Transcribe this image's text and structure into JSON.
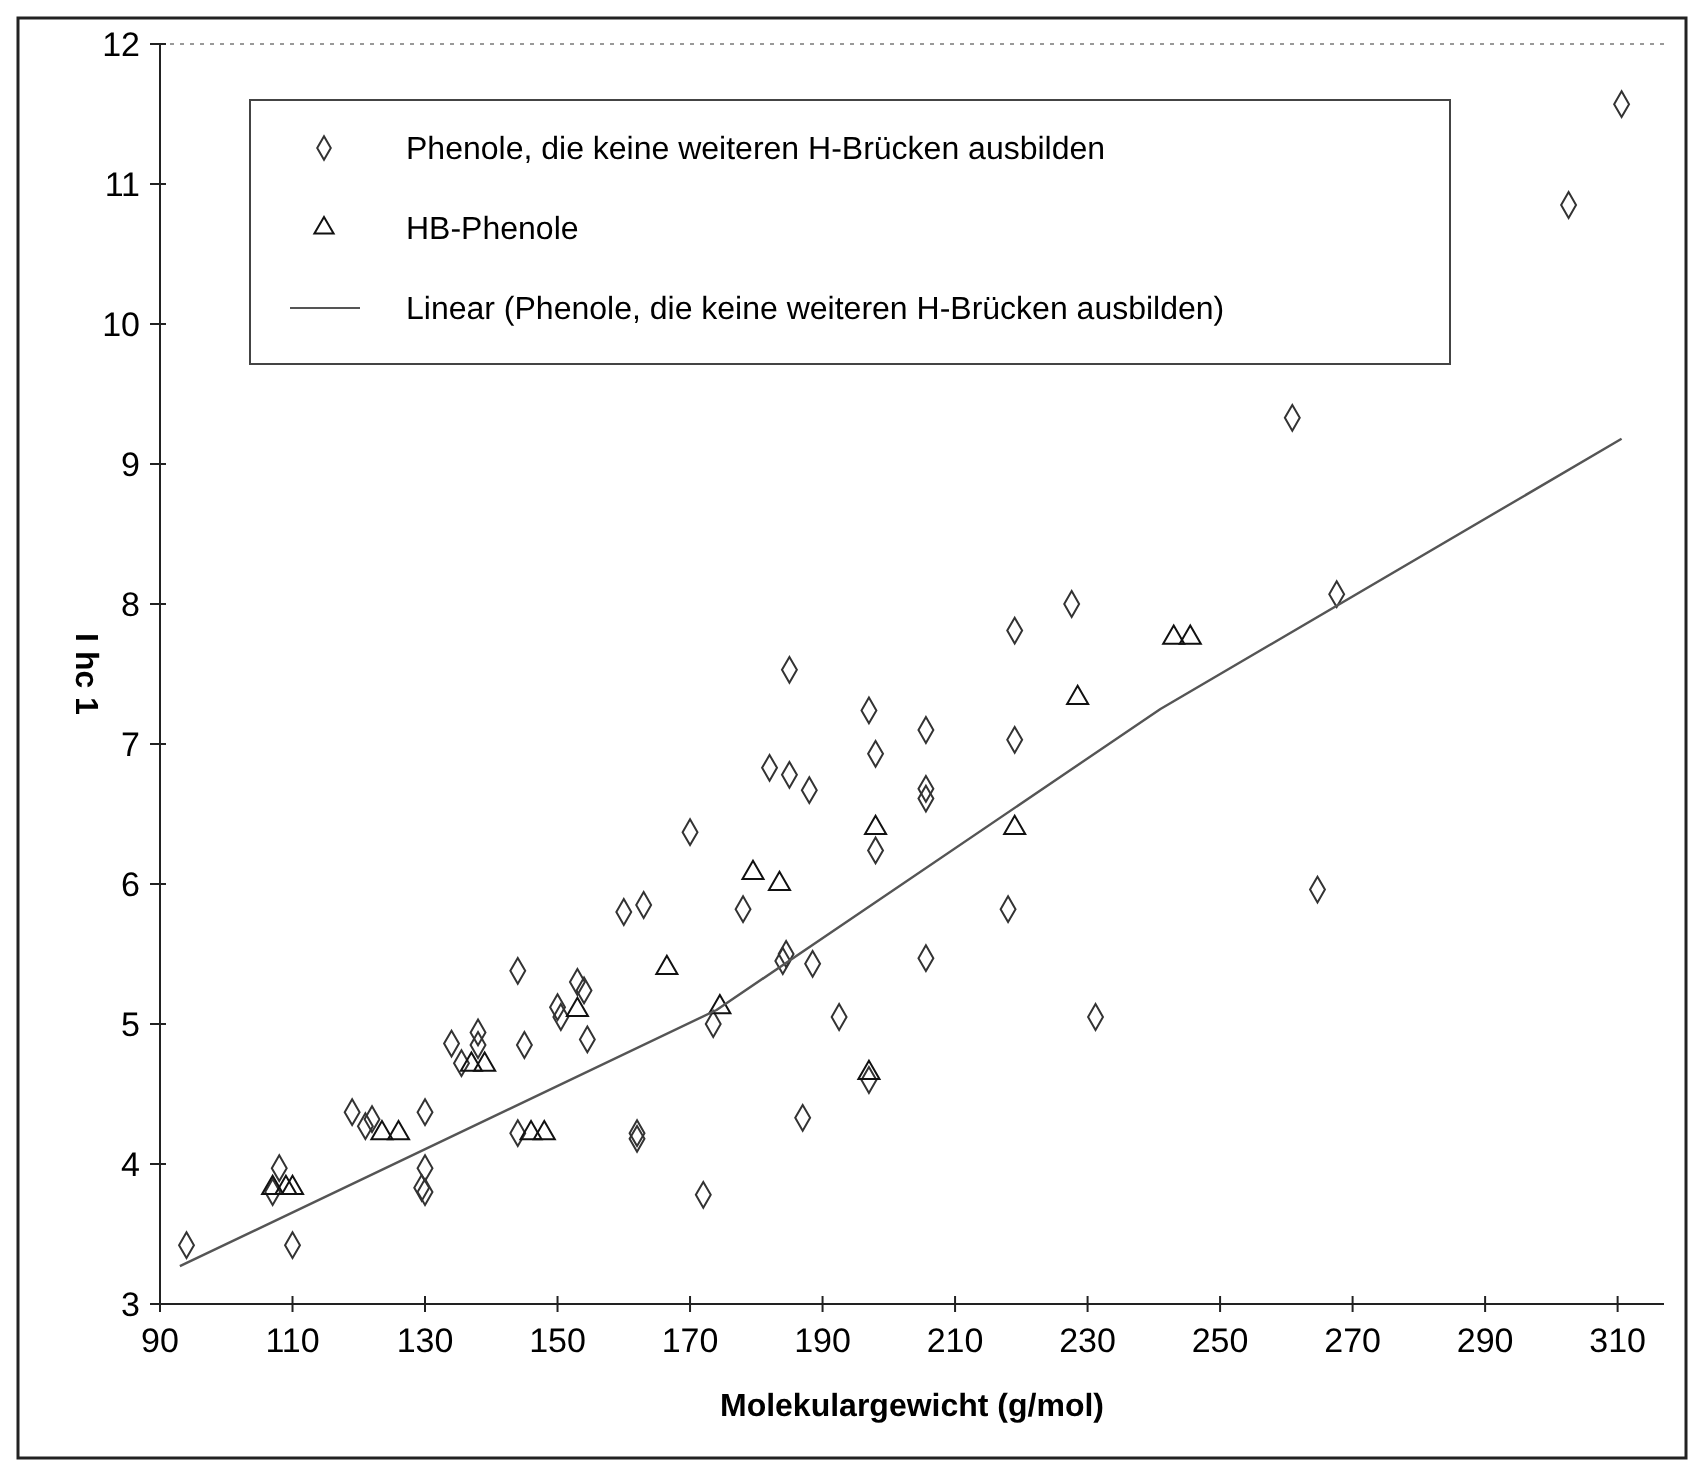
{
  "chart_data": {
    "type": "scatter",
    "xlabel": "Molekulargewicht (g/mol)",
    "ylabel": "I hc 1",
    "xlim": [
      90,
      317
    ],
    "ylim": [
      3,
      12
    ],
    "xticks": [
      90,
      110,
      130,
      150,
      170,
      190,
      210,
      230,
      250,
      270,
      290,
      310
    ],
    "yticks": [
      3,
      4,
      5,
      6,
      7,
      8,
      9,
      10,
      11,
      12
    ],
    "legend": "top left",
    "series": [
      {
        "name": "Phenole, die keine weiteren H-Brücken ausbilden",
        "marker": "diamond",
        "color": "#333333",
        "x": [
          94,
          110,
          108,
          107,
          119,
          122,
          121,
          130,
          130,
          129.5,
          130,
          144,
          162,
          162,
          185,
          197,
          198,
          182,
          185,
          188,
          198,
          170,
          160,
          163,
          178,
          184.5,
          184,
          188.5,
          173.5,
          192.5,
          144,
          153,
          154,
          150,
          150.5,
          154.5,
          145,
          138,
          138,
          134,
          135.5,
          197,
          227.6,
          219,
          205.6,
          219,
          205.6,
          205.6,
          218,
          205.6,
          231.2,
          264.7,
          267.6,
          310.6,
          302.6,
          260.9,
          187,
          172
        ],
        "values": [
          3.42,
          3.42,
          3.97,
          3.8,
          4.37,
          4.32,
          4.27,
          4.37,
          3.97,
          3.83,
          3.8,
          4.22,
          4.22,
          4.18,
          7.53,
          7.24,
          6.93,
          6.83,
          6.78,
          6.67,
          6.24,
          6.37,
          5.8,
          5.85,
          5.82,
          5.5,
          5.45,
          5.43,
          5.0,
          5.05,
          5.38,
          5.3,
          5.24,
          5.12,
          5.05,
          4.89,
          4.85,
          4.94,
          4.85,
          4.86,
          4.72,
          4.6,
          8.0,
          7.81,
          7.1,
          7.03,
          6.68,
          6.61,
          5.82,
          5.47,
          5.05,
          5.96,
          8.07,
          11.57,
          10.85,
          9.33,
          4.33,
          3.78
        ]
      },
      {
        "name": "HB-Phenole",
        "marker": "triangle",
        "color": "#111111",
        "x": [
          107,
          109,
          110,
          123.5,
          126,
          146,
          148,
          198,
          179.5,
          183.5,
          166.5,
          174.5,
          153,
          137,
          139,
          197,
          243,
          245.5,
          228.5,
          219
        ],
        "values": [
          3.83,
          3.83,
          3.83,
          4.22,
          4.22,
          4.22,
          4.22,
          6.4,
          6.08,
          6.0,
          5.4,
          5.12,
          5.1,
          4.71,
          4.71,
          4.65,
          7.76,
          7.76,
          7.33,
          6.4
        ]
      },
      {
        "name": "Linear (Phenole, die keine weiteren H-Brücken ausbilden)",
        "type": "line",
        "marker": "none",
        "line_style": "solid",
        "color": "#555555",
        "x": [
          93,
          174,
          241,
          310.6
        ],
        "values": [
          3.27,
          5.1,
          7.25,
          9.18
        ]
      }
    ]
  }
}
